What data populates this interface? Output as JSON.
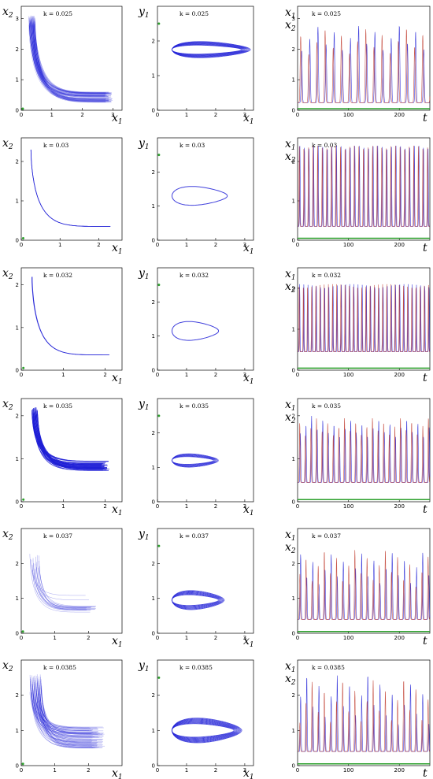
{
  "colors": {
    "x1": "#1f1fd6",
    "x2": "#c0392b",
    "equilibrium": "#2ca02c",
    "frame": "#000000"
  },
  "chart_data": [
    {
      "type": "scatter",
      "row": 0,
      "panel": "phase_x1_x2",
      "annotation": "k = 0.025",
      "xlabel": "x1",
      "ylabel": "x2",
      "xlim": [
        0,
        3.3
      ],
      "ylim": [
        0,
        3.4
      ],
      "xticks": [
        0,
        1,
        2,
        3
      ],
      "yticks": [
        0,
        1,
        2,
        3
      ]
    },
    {
      "type": "scatter",
      "row": 0,
      "panel": "phase_x1_y1",
      "annotation": "k = 0.025",
      "xlabel": "x1",
      "ylabel": "y1",
      "xlim": [
        0,
        3.3
      ],
      "ylim": [
        0,
        3.0
      ],
      "xticks": [
        0,
        1,
        2,
        3
      ],
      "yticks": [
        0,
        1,
        2
      ]
    },
    {
      "type": "line",
      "row": 0,
      "panel": "time_series",
      "annotation": "k = 0.025",
      "xlabel": "t",
      "series": [
        {
          "name": "x1"
        },
        {
          "name": "x2"
        }
      ],
      "xlim": [
        0,
        260
      ],
      "ylim": [
        0,
        3.4
      ],
      "xticks": [
        0,
        100,
        200
      ],
      "yticks": [
        0,
        1,
        2,
        3
      ]
    },
    {
      "type": "line",
      "row": 1,
      "panel": "phase_x1_x2",
      "annotation": "k = 0.03",
      "xlabel": "x1",
      "ylabel": "x2",
      "xlim": [
        0,
        2.6
      ],
      "ylim": [
        0,
        2.6
      ],
      "xticks": [
        0,
        1,
        2
      ],
      "yticks": [
        0,
        1,
        2
      ]
    },
    {
      "type": "line",
      "row": 1,
      "panel": "phase_x1_y1",
      "annotation": "k = 0.03",
      "xlabel": "x1",
      "ylabel": "y1",
      "xlim": [
        0,
        3.3
      ],
      "ylim": [
        0,
        3.0
      ],
      "xticks": [
        0,
        1,
        2,
        3
      ],
      "yticks": [
        0,
        1,
        2
      ]
    },
    {
      "type": "line",
      "row": 1,
      "panel": "time_series",
      "annotation": "k = 0.03",
      "xlabel": "t",
      "series": [
        {
          "name": "x1"
        },
        {
          "name": "x2"
        }
      ],
      "xlim": [
        0,
        260
      ],
      "ylim": [
        0,
        2.6
      ],
      "xticks": [
        0,
        100,
        200
      ],
      "yticks": [
        0,
        1,
        2
      ]
    },
    {
      "type": "line",
      "row": 2,
      "panel": "phase_x1_x2",
      "annotation": "k = 0.032",
      "xlabel": "x1",
      "ylabel": "x2",
      "xlim": [
        0,
        2.4
      ],
      "ylim": [
        0,
        2.4
      ],
      "xticks": [
        0,
        1,
        2
      ],
      "yticks": [
        0,
        1,
        2
      ]
    },
    {
      "type": "line",
      "row": 2,
      "panel": "phase_x1_y1",
      "annotation": "k = 0.032",
      "xlabel": "x1",
      "ylabel": "y1",
      "xlim": [
        0,
        3.3
      ],
      "ylim": [
        0,
        3.0
      ],
      "xticks": [
        0,
        1,
        2,
        3
      ],
      "yticks": [
        0,
        1,
        2
      ]
    },
    {
      "type": "line",
      "row": 2,
      "panel": "time_series",
      "annotation": "k = 0.032",
      "xlabel": "t",
      "series": [
        {
          "name": "x1"
        },
        {
          "name": "x2"
        }
      ],
      "xlim": [
        0,
        260
      ],
      "ylim": [
        0,
        2.5
      ],
      "xticks": [
        0,
        100,
        200
      ],
      "yticks": [
        0,
        1,
        2
      ]
    },
    {
      "type": "line",
      "row": 3,
      "panel": "phase_x1_x2",
      "annotation": "k = 0.035",
      "xlabel": "x1",
      "ylabel": "x2",
      "xlim": [
        0,
        2.4
      ],
      "ylim": [
        0,
        2.4
      ],
      "xticks": [
        0,
        1,
        2
      ],
      "yticks": [
        0,
        1,
        2
      ]
    },
    {
      "type": "line",
      "row": 3,
      "panel": "phase_x1_y1",
      "annotation": "k = 0.035",
      "xlabel": "x1",
      "ylabel": "y1",
      "xlim": [
        0,
        3.3
      ],
      "ylim": [
        0,
        3.0
      ],
      "xticks": [
        0,
        1,
        2,
        3
      ],
      "yticks": [
        0,
        1,
        2
      ]
    },
    {
      "type": "line",
      "row": 3,
      "panel": "time_series",
      "annotation": "k = 0.035",
      "xlabel": "t",
      "series": [
        {
          "name": "x1"
        },
        {
          "name": "x2"
        }
      ],
      "xlim": [
        0,
        260
      ],
      "ylim": [
        0,
        2.4
      ],
      "xticks": [
        0,
        100,
        200
      ],
      "yticks": [
        0,
        1,
        2
      ]
    },
    {
      "type": "line",
      "row": 4,
      "panel": "phase_x1_x2",
      "annotation": "k = 0.037",
      "xlabel": "x1",
      "ylabel": "x2",
      "xlim": [
        0,
        3.0
      ],
      "ylim": [
        0,
        3.0
      ],
      "xticks": [
        0,
        1,
        2
      ],
      "yticks": [
        0,
        1,
        2
      ]
    },
    {
      "type": "line",
      "row": 4,
      "panel": "phase_x1_y1",
      "annotation": "k = 0.037",
      "xlabel": "x1",
      "ylabel": "y1",
      "xlim": [
        0,
        3.3
      ],
      "ylim": [
        0,
        3.0
      ],
      "xticks": [
        0,
        1,
        2,
        3
      ],
      "yticks": [
        0,
        1,
        2
      ]
    },
    {
      "type": "line",
      "row": 4,
      "panel": "time_series",
      "annotation": "k = 0.037",
      "xlabel": "t",
      "series": [
        {
          "name": "x1"
        },
        {
          "name": "x2"
        }
      ],
      "xlim": [
        0,
        260
      ],
      "ylim": [
        0,
        3.0
      ],
      "xticks": [
        0,
        100,
        200
      ],
      "yticks": [
        0,
        1,
        2
      ]
    },
    {
      "type": "scatter",
      "row": 5,
      "panel": "phase_x1_x2",
      "annotation": "k = 0.0385",
      "xlabel": "x1",
      "ylabel": "x2",
      "xlim": [
        0,
        3.0
      ],
      "ylim": [
        0,
        3.0
      ],
      "xticks": [
        0,
        1,
        2
      ],
      "yticks": [
        0,
        1,
        2
      ]
    },
    {
      "type": "scatter",
      "row": 5,
      "panel": "phase_x1_y1",
      "annotation": "k = 0.0385",
      "xlabel": "x1",
      "ylabel": "y1",
      "xlim": [
        0,
        3.3
      ],
      "ylim": [
        0,
        3.0
      ],
      "xticks": [
        0,
        1,
        2,
        3
      ],
      "yticks": [
        0,
        1,
        2
      ]
    },
    {
      "type": "line",
      "row": 5,
      "panel": "time_series",
      "annotation": "k = 0.0385",
      "xlabel": "t",
      "series": [
        {
          "name": "x1"
        },
        {
          "name": "x2"
        }
      ],
      "xlim": [
        0,
        260
      ],
      "ylim": [
        0,
        3.0
      ],
      "xticks": [
        0,
        100,
        200
      ],
      "yticks": [
        0,
        1,
        2
      ]
    }
  ]
}
